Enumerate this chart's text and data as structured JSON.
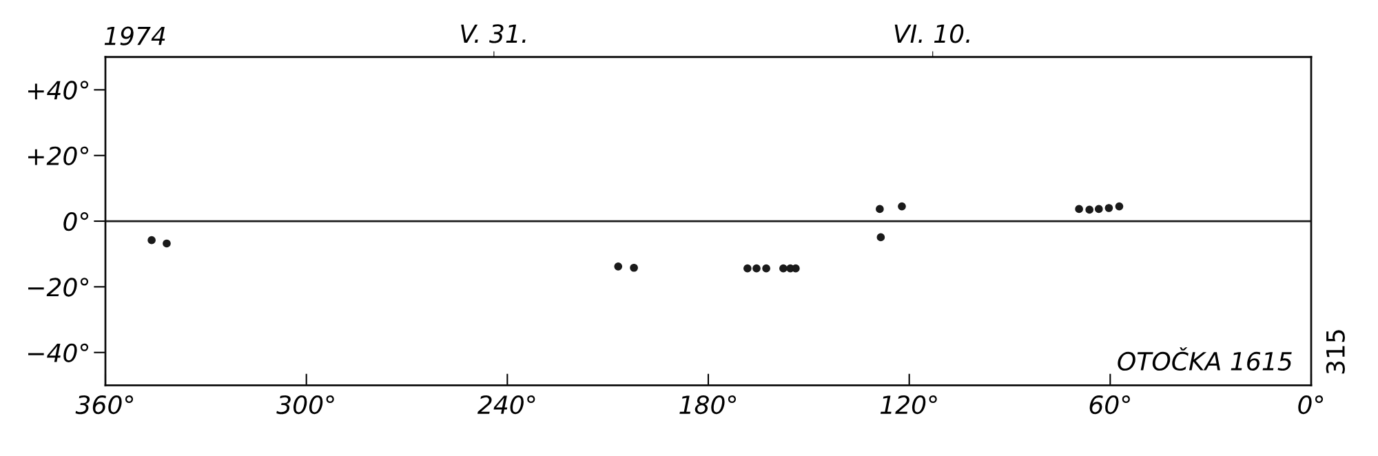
{
  "chart_data": {
    "type": "scatter",
    "title": "1974",
    "x": [
      346.2,
      341.7,
      206.9,
      202.2,
      168.3,
      165.6,
      162.7,
      157.6,
      155.5,
      153.9,
      128.8,
      122.2,
      128.5,
      69.3,
      66.2,
      63.4,
      60.4,
      57.3
    ],
    "series": [
      {
        "color": "#1a1a1a",
        "values": [
          -5.8,
          -6.8,
          -13.8,
          -14.2,
          -14.4,
          -14.4,
          -14.4,
          -14.4,
          -14.4,
          -14.4,
          3.7,
          4.5,
          -4.9,
          3.7,
          3.5,
          3.7,
          4.0,
          4.5
        ]
      }
    ],
    "marker": "circle",
    "xlim": [
      360,
      0
    ],
    "ylim": [
      -50,
      50
    ],
    "xticks": [
      {
        "value": 360,
        "label": "360°"
      },
      {
        "value": 300,
        "label": "300°"
      },
      {
        "value": 240,
        "label": "240°"
      },
      {
        "value": 180,
        "label": "180°"
      },
      {
        "value": 120,
        "label": "120°"
      },
      {
        "value": 60,
        "label": "60°"
      },
      {
        "value": 0,
        "label": "0°"
      }
    ],
    "yticks": [
      {
        "value": -40,
        "label": "−40°"
      },
      {
        "value": -20,
        "label": "−20°"
      },
      {
        "value": 0,
        "label": "0°"
      },
      {
        "value": 20,
        "label": "+20°"
      },
      {
        "value": 40,
        "label": "+40°"
      }
    ],
    "x2lim": [
      "1974-05-22T03:30",
      "1974-06-18T15:00"
    ],
    "x2ticks": [
      {
        "value": "1974-05-31",
        "label": "V. 31."
      },
      {
        "value": "1974-06-10",
        "label": "VI. 10."
      }
    ],
    "ref_lines": [
      {
        "axis": "y",
        "value": 0,
        "label": null,
        "color": "#1a1a1a",
        "line_style": "solid"
      }
    ],
    "annotations": [
      "OTOČKA 1615",
      "315"
    ],
    "grid": false
  }
}
